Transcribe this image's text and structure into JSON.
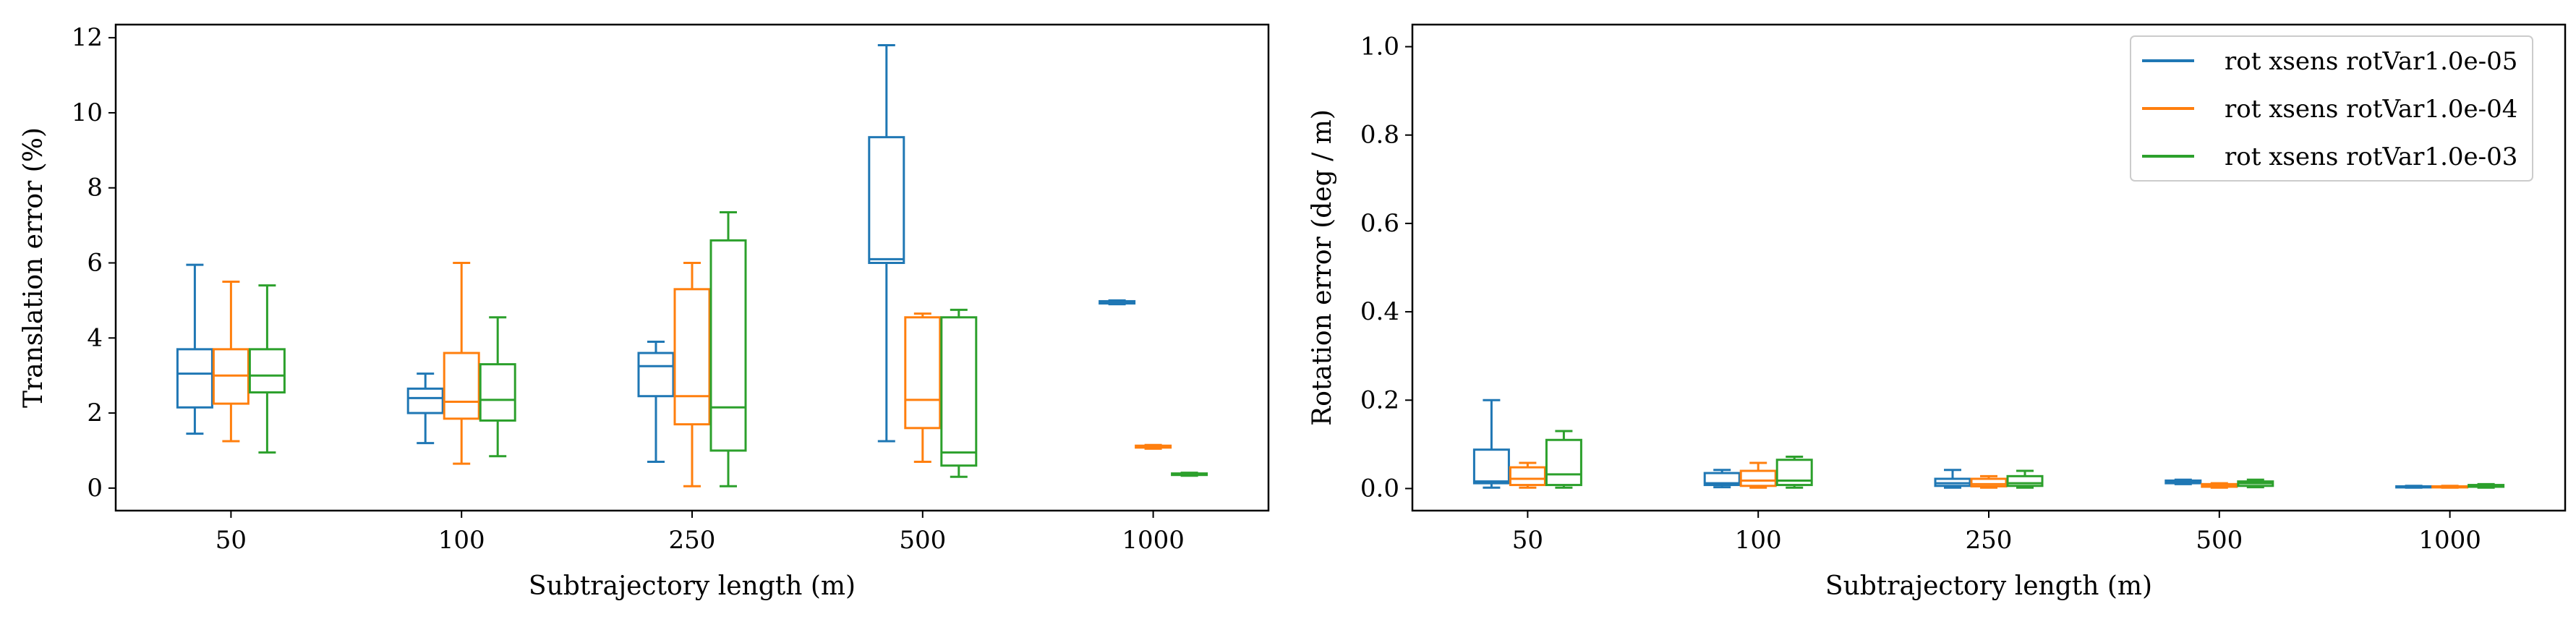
{
  "chart_data": [
    {
      "type": "box",
      "xlabel": "Subtrajectory length (m)",
      "ylabel": "Translation error (%)",
      "categories": [
        "50",
        "100",
        "250",
        "500",
        "1000"
      ],
      "ylim": [
        -0.6,
        12.35
      ],
      "yticks": [
        0,
        2,
        4,
        6,
        8,
        10,
        12
      ],
      "grid": false,
      "series": [
        {
          "name": "rot xsens rotVar1.0e-05",
          "color": "#1f77b4",
          "boxes": [
            {
              "whislo": 1.45,
              "q1": 2.15,
              "med": 3.05,
              "q3": 3.7,
              "whishi": 5.95
            },
            {
              "whislo": 1.2,
              "q1": 2.0,
              "med": 2.4,
              "q3": 2.65,
              "whishi": 3.05
            },
            {
              "whislo": 0.7,
              "q1": 2.45,
              "med": 3.25,
              "q3": 3.6,
              "whishi": 3.9
            },
            {
              "whislo": 1.25,
              "q1": 6.0,
              "med": 6.1,
              "q3": 9.35,
              "whishi": 11.8
            },
            {
              "whislo": 4.9,
              "q1": 4.92,
              "med": 4.95,
              "q3": 4.98,
              "whishi": 5.0
            }
          ]
        },
        {
          "name": "rot xsens rotVar1.0e-04",
          "color": "#ff7f0e",
          "boxes": [
            {
              "whislo": 1.25,
              "q1": 2.25,
              "med": 3.0,
              "q3": 3.7,
              "whishi": 5.5
            },
            {
              "whislo": 0.65,
              "q1": 1.85,
              "med": 2.3,
              "q3": 3.6,
              "whishi": 6.0
            },
            {
              "whislo": 0.05,
              "q1": 1.7,
              "med": 2.45,
              "q3": 5.3,
              "whishi": 6.0
            },
            {
              "whislo": 0.7,
              "q1": 1.6,
              "med": 2.35,
              "q3": 4.55,
              "whishi": 4.65
            },
            {
              "whislo": 1.05,
              "q1": 1.08,
              "med": 1.1,
              "q3": 1.13,
              "whishi": 1.15
            }
          ]
        },
        {
          "name": "rot xsens rotVar1.0e-03",
          "color": "#2ca02c",
          "boxes": [
            {
              "whislo": 0.95,
              "q1": 2.55,
              "med": 3.0,
              "q3": 3.7,
              "whishi": 5.4
            },
            {
              "whislo": 0.85,
              "q1": 1.8,
              "med": 2.35,
              "q3": 3.3,
              "whishi": 4.55
            },
            {
              "whislo": 0.05,
              "q1": 1.0,
              "med": 2.15,
              "q3": 6.6,
              "whishi": 7.35
            },
            {
              "whislo": 0.3,
              "q1": 0.6,
              "med": 0.95,
              "q3": 4.55,
              "whishi": 4.75
            },
            {
              "whislo": 0.33,
              "q1": 0.35,
              "med": 0.37,
              "q3": 0.39,
              "whishi": 0.41
            }
          ]
        }
      ]
    },
    {
      "type": "box",
      "xlabel": "Subtrajectory length (m)",
      "ylabel": "Rotation error (deg / m)",
      "categories": [
        "50",
        "100",
        "250",
        "500",
        "1000"
      ],
      "ylim": [
        -0.05,
        1.05
      ],
      "yticks": [
        0.0,
        0.2,
        0.4,
        0.6,
        0.8,
        1.0
      ],
      "grid": false,
      "legend": {
        "position": "top-right",
        "entries": [
          "rot xsens rotVar1.0e-05",
          "rot xsens rotVar1.0e-04",
          "rot xsens rotVar1.0e-03"
        ]
      },
      "series": [
        {
          "name": "rot xsens rotVar1.0e-05",
          "color": "#1f77b4",
          "boxes": [
            {
              "whislo": 0.002,
              "q1": 0.012,
              "med": 0.016,
              "q3": 0.088,
              "whishi": 0.2
            },
            {
              "whislo": 0.003,
              "q1": 0.008,
              "med": 0.012,
              "q3": 0.035,
              "whishi": 0.042
            },
            {
              "whislo": 0.002,
              "q1": 0.006,
              "med": 0.012,
              "q3": 0.022,
              "whishi": 0.042
            },
            {
              "whislo": 0.01,
              "q1": 0.012,
              "med": 0.014,
              "q3": 0.018,
              "whishi": 0.02
            },
            {
              "whislo": 0.002,
              "q1": 0.003,
              "med": 0.004,
              "q3": 0.005,
              "whishi": 0.006
            }
          ]
        },
        {
          "name": "rot xsens rotVar1.0e-04",
          "color": "#ff7f0e",
          "boxes": [
            {
              "whislo": 0.002,
              "q1": 0.008,
              "med": 0.022,
              "q3": 0.048,
              "whishi": 0.058
            },
            {
              "whislo": 0.002,
              "q1": 0.006,
              "med": 0.018,
              "q3": 0.04,
              "whishi": 0.058
            },
            {
              "whislo": 0.002,
              "q1": 0.005,
              "med": 0.01,
              "q3": 0.022,
              "whishi": 0.028
            },
            {
              "whislo": 0.002,
              "q1": 0.004,
              "med": 0.007,
              "q3": 0.01,
              "whishi": 0.012
            },
            {
              "whislo": 0.002,
              "q1": 0.003,
              "med": 0.004,
              "q3": 0.005,
              "whishi": 0.006
            }
          ]
        },
        {
          "name": "rot xsens rotVar1.0e-03",
          "color": "#2ca02c",
          "boxes": [
            {
              "whislo": 0.002,
              "q1": 0.008,
              "med": 0.032,
              "q3": 0.11,
              "whishi": 0.13
            },
            {
              "whislo": 0.002,
              "q1": 0.008,
              "med": 0.018,
              "q3": 0.065,
              "whishi": 0.072
            },
            {
              "whislo": 0.002,
              "q1": 0.006,
              "med": 0.012,
              "q3": 0.028,
              "whishi": 0.04
            },
            {
              "whislo": 0.003,
              "q1": 0.006,
              "med": 0.012,
              "q3": 0.016,
              "whishi": 0.02
            },
            {
              "whislo": 0.002,
              "q1": 0.004,
              "med": 0.006,
              "q3": 0.008,
              "whishi": 0.01
            }
          ]
        }
      ]
    }
  ]
}
